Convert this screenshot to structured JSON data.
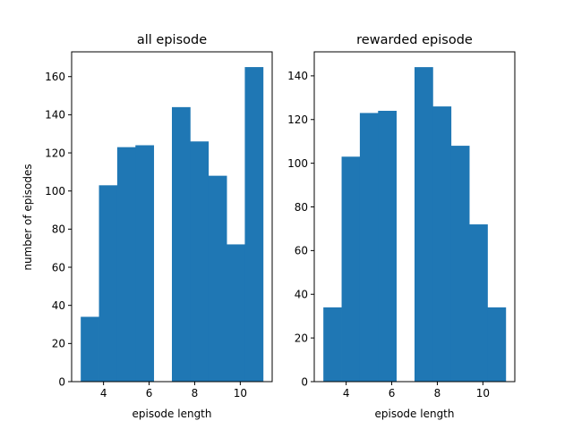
{
  "chart_data": [
    {
      "type": "bar",
      "title": "all episode",
      "xlabel": "episode length",
      "ylabel": "number of episodes",
      "xlim": [
        2.6,
        11.4
      ],
      "ylim": [
        0,
        173
      ],
      "xticks": [
        4,
        6,
        8,
        10
      ],
      "yticks": [
        0,
        20,
        40,
        60,
        80,
        100,
        120,
        140,
        160
      ],
      "bins": [
        {
          "x0": 3.0,
          "x1": 3.8,
          "value": 34
        },
        {
          "x0": 3.8,
          "x1": 4.6,
          "value": 103
        },
        {
          "x0": 4.6,
          "x1": 5.4,
          "value": 123
        },
        {
          "x0": 5.4,
          "x1": 6.2,
          "value": 124
        },
        {
          "x0": 6.2,
          "x1": 7.0,
          "value": 0
        },
        {
          "x0": 7.0,
          "x1": 7.8,
          "value": 144
        },
        {
          "x0": 7.8,
          "x1": 8.6,
          "value": 126
        },
        {
          "x0": 8.6,
          "x1": 9.4,
          "value": 108
        },
        {
          "x0": 9.4,
          "x1": 10.2,
          "value": 72
        },
        {
          "x0": 10.2,
          "x1": 11.0,
          "value": 165
        }
      ],
      "color": "#1f77b4",
      "grid": false
    },
    {
      "type": "bar",
      "title": "rewarded episode",
      "xlabel": "episode length",
      "ylabel": "",
      "xlim": [
        2.6,
        11.4
      ],
      "ylim": [
        0,
        151
      ],
      "xticks": [
        4,
        6,
        8,
        10
      ],
      "yticks": [
        0,
        20,
        40,
        60,
        80,
        100,
        120,
        140
      ],
      "bins": [
        {
          "x0": 3.0,
          "x1": 3.8,
          "value": 34
        },
        {
          "x0": 3.8,
          "x1": 4.6,
          "value": 103
        },
        {
          "x0": 4.6,
          "x1": 5.4,
          "value": 123
        },
        {
          "x0": 5.4,
          "x1": 6.2,
          "value": 124
        },
        {
          "x0": 6.2,
          "x1": 7.0,
          "value": 0
        },
        {
          "x0": 7.0,
          "x1": 7.8,
          "value": 144
        },
        {
          "x0": 7.8,
          "x1": 8.6,
          "value": 126
        },
        {
          "x0": 8.6,
          "x1": 9.4,
          "value": 108
        },
        {
          "x0": 9.4,
          "x1": 10.2,
          "value": 72
        },
        {
          "x0": 10.2,
          "x1": 11.0,
          "value": 34
        }
      ],
      "color": "#1f77b4",
      "grid": false
    }
  ]
}
